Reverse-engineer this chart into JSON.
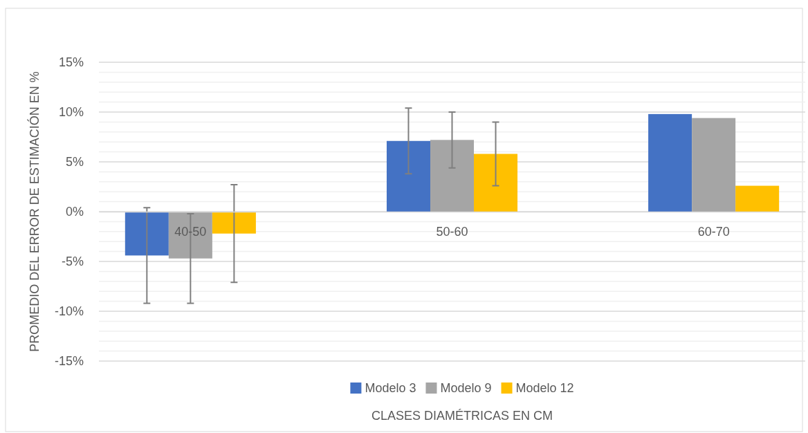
{
  "chart_data": {
    "type": "bar",
    "xlabel": "CLASES DIAMÉTRICAS EN CM",
    "ylabel": "PROMEDIO DEL ERROR  DE ESTIMACIÓN EN %",
    "categories": [
      "40-50",
      "50-60",
      "60-70"
    ],
    "series": [
      {
        "name": "Modelo 3",
        "color": "#4472c4",
        "values": [
          -4.4,
          7.1,
          9.8
        ],
        "errors": [
          4.8,
          3.3,
          null
        ]
      },
      {
        "name": "Modelo 9",
        "color": "#a5a5a5",
        "values": [
          -4.7,
          7.2,
          9.4
        ],
        "errors": [
          4.5,
          2.8,
          null
        ]
      },
      {
        "name": "Modelo 12",
        "color": "#ffc000",
        "values": [
          -2.2,
          5.8,
          2.6
        ],
        "errors": [
          4.9,
          3.2,
          null
        ]
      }
    ],
    "ylim": [
      -15,
      15
    ],
    "yticks": [
      {
        "value": -15,
        "label": "-15%"
      },
      {
        "value": -14,
        "label": null
      },
      {
        "value": -13,
        "label": null
      },
      {
        "value": -12,
        "label": null
      },
      {
        "value": -11,
        "label": null
      },
      {
        "value": -10,
        "label": "-10%"
      },
      {
        "value": -9,
        "label": null
      },
      {
        "value": -8,
        "label": null
      },
      {
        "value": -7,
        "label": null
      },
      {
        "value": -6,
        "label": null
      },
      {
        "value": -5,
        "label": "-5%"
      },
      {
        "value": -4,
        "label": null
      },
      {
        "value": -3,
        "label": null
      },
      {
        "value": -2,
        "label": null
      },
      {
        "value": -1,
        "label": null
      },
      {
        "value": 0,
        "label": "0%"
      },
      {
        "value": 1,
        "label": null
      },
      {
        "value": 2,
        "label": null
      },
      {
        "value": 3,
        "label": null
      },
      {
        "value": 4,
        "label": null
      },
      {
        "value": 5,
        "label": "5%"
      },
      {
        "value": 6,
        "label": null
      },
      {
        "value": 7,
        "label": null
      },
      {
        "value": 8,
        "label": null
      },
      {
        "value": 9,
        "label": null
      },
      {
        "value": 10,
        "label": "10%"
      },
      {
        "value": 11,
        "label": null
      },
      {
        "value": 12,
        "label": null
      },
      {
        "value": 13,
        "label": null
      },
      {
        "value": 14,
        "label": null
      },
      {
        "value": 15,
        "label": "15%"
      }
    ],
    "grid": "y",
    "legend": "bottom"
  }
}
